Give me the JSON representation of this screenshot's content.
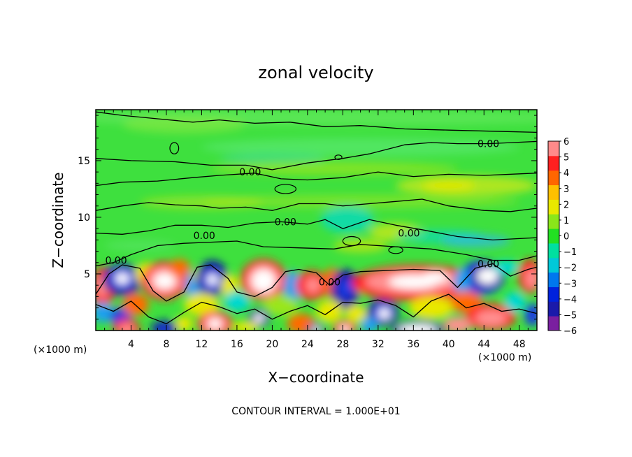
{
  "chart_data": {
    "type": "heatmap",
    "title": "zonal velocity",
    "xlabel": "X−coordinate",
    "ylabel": "Z−coordinate",
    "x_unit": "(×1000 m)",
    "x_unit_right": "(×1000 m)",
    "xlim": [
      0,
      50
    ],
    "ylim": [
      0,
      19.5
    ],
    "x_ticks": [
      4,
      8,
      12,
      16,
      20,
      24,
      28,
      32,
      36,
      40,
      44,
      48
    ],
    "y_ticks": [
      5,
      10,
      15
    ],
    "colorbar": {
      "range": [
        -6,
        6
      ],
      "tick_labels": [
        "6",
        "5",
        "4",
        "3",
        "2",
        "1",
        "0",
        "−1",
        "−2",
        "−3",
        "−4",
        "−5",
        "−6"
      ],
      "colors": [
        "#7a1fa0",
        "#1a1aaa",
        "#0022dd",
        "#0077ee",
        "#00c8d8",
        "#00e0a0",
        "#22e022",
        "#8ae61a",
        "#e8e800",
        "#ffc000",
        "#ff6600",
        "#ff2020",
        "#ff8a8a"
      ]
    },
    "contour_labels": [
      {
        "x": 44.5,
        "z": 16.5,
        "text": "0.00"
      },
      {
        "x": 17.5,
        "z": 14.0,
        "text": "0.00"
      },
      {
        "x": 21.5,
        "z": 9.6,
        "text": "0.00"
      },
      {
        "x": 12.3,
        "z": 8.4,
        "text": "0.00"
      },
      {
        "x": 35.5,
        "z": 8.6,
        "text": "0.00"
      },
      {
        "x": 2.3,
        "z": 6.2,
        "text": "0.00"
      },
      {
        "x": 44.5,
        "z": 5.9,
        "text": "0.00"
      },
      {
        "x": 26.5,
        "z": 4.3,
        "text": "0.00"
      }
    ],
    "contour_interval_text": "CONTOUR INTERVAL =  1.000E+01"
  }
}
